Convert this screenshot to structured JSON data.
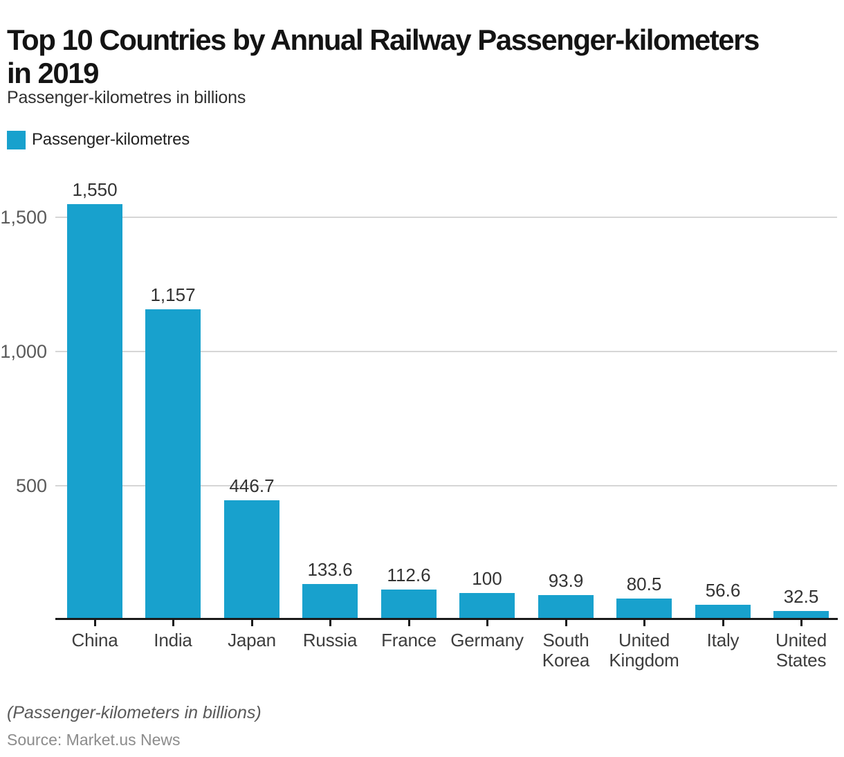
{
  "header": {
    "title": "Top 10 Countries by Annual Railway Passenger-kilometers in 2019",
    "title_line1": "Top 10 Countries by Annual Railway Passenger-kilometers",
    "title_line2": "in 2019",
    "subtitle": "Passenger-kilometres in billions"
  },
  "legend": {
    "label": "Passenger-kilometres",
    "swatch_color": "#18A1CD"
  },
  "chart_data": {
    "type": "bar",
    "title": "Top 10 Countries by Annual Railway Passenger-kilometers in 2019",
    "xlabel": "",
    "ylabel": "Passenger-kilometres in billions",
    "categories": [
      "China",
      "India",
      "Japan",
      "Russia",
      "France",
      "Germany",
      "South Korea",
      "United Kingdom",
      "Italy",
      "United States"
    ],
    "category_lines": [
      [
        "China"
      ],
      [
        "India"
      ],
      [
        "Japan"
      ],
      [
        "Russia"
      ],
      [
        "France"
      ],
      [
        "Germany"
      ],
      [
        "South",
        "Korea"
      ],
      [
        "United",
        "Kingdom"
      ],
      [
        "Italy"
      ],
      [
        "United",
        "States"
      ]
    ],
    "values": [
      1550,
      1157,
      446.7,
      133.6,
      112.6,
      100,
      93.9,
      80.5,
      56.6,
      32.5
    ],
    "value_labels": [
      "1,550",
      "1,157",
      "446.7",
      "133.6",
      "112.6",
      "100",
      "93.9",
      "80.5",
      "56.6",
      "32.5"
    ],
    "series": [
      {
        "name": "Passenger-kilometres",
        "values": [
          1550,
          1157,
          446.7,
          133.6,
          112.6,
          100,
          93.9,
          80.5,
          56.6,
          32.5
        ]
      }
    ],
    "yticks": [
      500,
      1000,
      1500
    ],
    "ytick_labels": [
      "500",
      "1,000",
      "1,500"
    ],
    "ylim": [
      0,
      1660
    ],
    "grid": true,
    "legend_position": "top-left",
    "bar_color": "#18A1CD",
    "gridline_color": "#d6d6d6",
    "axis_color": "#1a1a1a"
  },
  "footer": {
    "note": "(Passenger-kilometers in billions)",
    "source": "Source: Market.us News"
  }
}
